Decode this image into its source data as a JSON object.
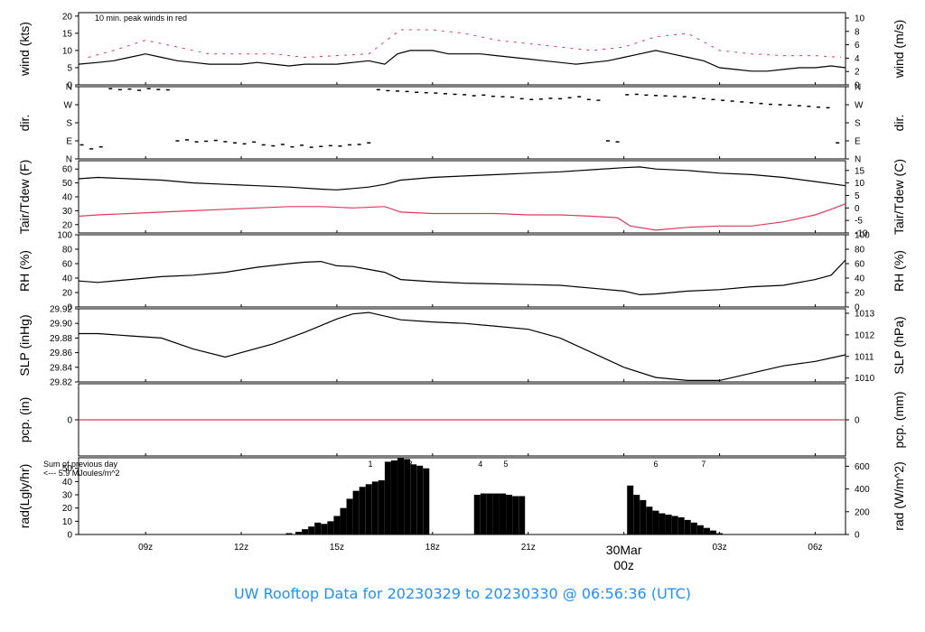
{
  "footer": {
    "title": "UW Rooftop Data for 20230329  to  20230330 @ 06:56:36  (UTC)"
  },
  "colors": {
    "black": "#000000",
    "red": "#dc3c5a",
    "purple": "#a020f0",
    "blue": "#1e90ff"
  },
  "chart_data": {
    "type": "line",
    "time_range_hours_utc": [
      6.9,
      30.95
    ],
    "x_ticks": [
      {
        "hour": 9,
        "label": "09z"
      },
      {
        "hour": 12,
        "label": "12z"
      },
      {
        "hour": 15,
        "label": "15z"
      },
      {
        "hour": 18,
        "label": "18z"
      },
      {
        "hour": 21,
        "label": "21z"
      },
      {
        "hour": 24,
        "label": "00z",
        "date_label": "30Mar"
      },
      {
        "hour": 27,
        "label": "03z"
      },
      {
        "hour": 30,
        "label": "06z"
      }
    ],
    "panels": [
      {
        "id": "wind",
        "left_label": "wind (kts)",
        "right_label": "wind (m/s)",
        "ylim": [
          0,
          21
        ],
        "left_ticks": [
          "0",
          "5",
          "10",
          "15",
          "20"
        ],
        "right_ticks": [
          "0",
          "2",
          "4",
          "6",
          "8",
          "10"
        ],
        "note": "10 min. peak winds in red",
        "series": [
          {
            "name": "wind",
            "color": "#000000",
            "x": [
              6.9,
              7.5,
              8.0,
              8.5,
              9.0,
              9.5,
              10.0,
              10.5,
              11.0,
              11.5,
              12.0,
              12.5,
              13.0,
              13.5,
              14.0,
              14.5,
              15.0,
              15.5,
              16.0,
              16.5,
              16.9,
              17.3,
              18.0,
              18.5,
              19.0,
              19.5,
              20.0,
              20.5,
              21.0,
              21.5,
              22.0,
              22.5,
              23.0,
              23.5,
              24.0,
              24.5,
              25.0,
              25.5,
              26.0,
              26.5,
              27.0,
              27.5,
              28.0,
              28.5,
              29.0,
              29.5,
              30.0,
              30.5,
              30.95
            ],
            "y": [
              6,
              6.5,
              7,
              8,
              9,
              8,
              7,
              6.5,
              6,
              6,
              6,
              6.5,
              6,
              5.5,
              6,
              6,
              6,
              6.5,
              7,
              6,
              9,
              10,
              10,
              9,
              9,
              9,
              8.5,
              8,
              7.5,
              7,
              6.5,
              6,
              6.5,
              7,
              8,
              9,
              10,
              9,
              8,
              7,
              5,
              4.5,
              4,
              4,
              4.5,
              5,
              5,
              5.5,
              5
            ]
          },
          {
            "name": "10 min. peak winds",
            "color": "#dc3c5a",
            "x": [
              7.2,
              8.0,
              9.0,
              10.0,
              11.0,
              12.0,
              13.0,
              14.0,
              15.0,
              16.0,
              17.0,
              18.0,
              19.0,
              20.0,
              21.0,
              22.0,
              23.0,
              24.0,
              25.0,
              26.0,
              27.0,
              28.0,
              29.0,
              30.0,
              30.8
            ],
            "y": [
              8,
              10,
              13,
              11,
              9,
              9,
              9,
              8,
              8.5,
              9,
              16,
              16,
              15,
              13,
              12,
              11,
              10,
              11,
              14,
              15,
              10,
              9,
              8.5,
              8.5,
              8
            ]
          }
        ]
      },
      {
        "id": "dir",
        "left_label": "dir.",
        "right_label": "dir.",
        "ylim": [
          0,
          360
        ],
        "left_ticks": [
          "N",
          "E",
          "S",
          "W",
          "N"
        ],
        "right_ticks": [
          "N",
          "E",
          "S",
          "W",
          "N"
        ],
        "series": [
          {
            "name": "direction",
            "color": "#000000",
            "style": "points",
            "x": [
              7.0,
              7.3,
              7.6,
              7.9,
              8.2,
              8.5,
              8.8,
              9.1,
              9.4,
              9.7,
              10.0,
              10.3,
              10.6,
              10.9,
              11.2,
              11.5,
              11.8,
              12.1,
              12.4,
              12.7,
              13.0,
              13.3,
              13.6,
              13.9,
              14.2,
              14.5,
              14.8,
              15.1,
              15.4,
              15.7,
              16.0,
              16.3,
              16.6,
              16.9,
              17.2,
              17.5,
              17.8,
              18.1,
              18.4,
              18.7,
              19.0,
              19.3,
              19.6,
              19.9,
              20.2,
              20.5,
              20.8,
              21.1,
              21.4,
              21.7,
              22.0,
              22.3,
              22.6,
              22.9,
              23.2,
              23.5,
              23.8,
              24.1,
              24.4,
              24.7,
              25.0,
              25.3,
              25.6,
              25.9,
              26.2,
              26.5,
              26.8,
              27.1,
              27.4,
              27.7,
              28.0,
              28.3,
              28.6,
              28.9,
              29.2,
              29.5,
              29.8,
              30.1,
              30.4,
              30.7
            ],
            "y": [
              70,
              50,
              60,
              350,
              345,
              348,
              342,
              350,
              346,
              344,
              90,
              95,
              85,
              88,
              92,
              86,
              80,
              75,
              84,
              70,
              65,
              72,
              60,
              68,
              58,
              62,
              66,
              64,
              70,
              72,
              80,
              345,
              340,
              338,
              336,
              332,
              330,
              328,
              325,
              322,
              320,
              315,
              318,
              312,
              310,
              308,
              300,
              296,
              298,
              302,
              300,
              305,
              310,
              296,
              292,
              90,
              85,
              320,
              322,
              318,
              316,
              314,
              312,
              310,
              305,
              300,
              296,
              292,
              288,
              284,
              280,
              276,
              272,
              270,
              268,
              265,
              262,
              258,
              255,
              80
            ]
          }
        ]
      },
      {
        "id": "temp",
        "left_label": "Tair/Tdew (F)",
        "right_label": "Tair/Tdew (C)",
        "ylim": [
          14,
          66
        ],
        "left_ticks": [
          "20",
          "30",
          "40",
          "50",
          "60"
        ],
        "right_ticks": [
          "-10",
          "-5",
          "0",
          "5",
          "10",
          "15"
        ],
        "series": [
          {
            "name": "Tair",
            "color": "#000000",
            "x": [
              6.9,
              7.5,
              8.5,
              9.5,
              10.5,
              11.5,
              12.5,
              13.5,
              14.5,
              15.0,
              15.5,
              16.0,
              16.5,
              17.0,
              18.0,
              19.0,
              20.0,
              21.0,
              22.0,
              23.0,
              24.0,
              24.5,
              25.0,
              26.0,
              27.0,
              28.0,
              29.0,
              30.0,
              30.95
            ],
            "y": [
              53,
              54,
              53,
              52,
              50,
              49,
              48,
              47,
              45.5,
              45,
              46,
              47,
              49,
              52,
              54,
              55,
              56,
              57,
              58,
              59.5,
              61,
              61.5,
              60,
              59,
              57,
              56,
              54,
              51,
              48
            ]
          },
          {
            "name": "Tdew",
            "color": "#dc3c5a",
            "x": [
              6.9,
              7.5,
              8.5,
              9.5,
              10.5,
              11.5,
              12.5,
              13.5,
              14.5,
              15.5,
              16.5,
              17.0,
              18.0,
              19.0,
              20.0,
              21.0,
              22.0,
              23.0,
              23.8,
              24.2,
              25.0,
              26.0,
              27.0,
              28.0,
              29.0,
              30.0,
              30.5,
              30.95
            ],
            "y": [
              26,
              27,
              28,
              29,
              30,
              31,
              32,
              33,
              33,
              32,
              33,
              29,
              28,
              28,
              28,
              27,
              27,
              26,
              25,
              19,
              16,
              18,
              19,
              19,
              22,
              27,
              31,
              35
            ]
          }
        ]
      },
      {
        "id": "rh",
        "left_label": "RH (%)",
        "right_label": "RH (%)",
        "ylim": [
          0,
          100
        ],
        "left_ticks": [
          "0",
          "20",
          "40",
          "60",
          "80",
          "100"
        ],
        "right_ticks": [
          "0",
          "20",
          "40",
          "60",
          "80",
          "100"
        ],
        "series": [
          {
            "name": "RH",
            "color": "#000000",
            "x": [
              6.9,
              7.5,
              8.5,
              9.5,
              10.5,
              11.5,
              12.5,
              13.5,
              14.0,
              14.5,
              15.0,
              15.5,
              16.0,
              16.5,
              17.0,
              18.0,
              19.0,
              20.0,
              21.0,
              22.0,
              23.0,
              24.0,
              24.5,
              25.0,
              26.0,
              27.0,
              28.0,
              29.0,
              30.0,
              30.5,
              30.95
            ],
            "y": [
              36,
              34,
              38,
              42,
              44,
              48,
              55,
              60,
              62,
              63,
              57,
              56,
              52,
              48,
              38,
              35,
              33,
              32,
              31,
              30,
              26,
              22,
              17,
              18,
              22,
              24,
              28,
              30,
              38,
              44,
              65
            ]
          }
        ]
      },
      {
        "id": "slp",
        "left_label": "SLP (inHg)",
        "right_label": "SLP (hPa)",
        "ylim": [
          29.82,
          29.92
        ],
        "left_ticks": [
          "29.82",
          "29.84",
          "29.86",
          "29.88",
          "29.90",
          "29.92"
        ],
        "right_ticks": [
          "1010",
          "1011",
          "1012",
          "1013"
        ],
        "series": [
          {
            "name": "SLP",
            "color": "#000000",
            "x": [
              6.9,
              7.5,
              8.5,
              9.5,
              10.5,
              11.5,
              12.0,
              13.0,
              14.0,
              15.0,
              15.5,
              16.0,
              16.5,
              17.0,
              18.0,
              19.0,
              20.0,
              21.0,
              22.0,
              23.0,
              24.0,
              25.0,
              26.0,
              27.0,
              28.0,
              29.0,
              30.0,
              30.95
            ],
            "y": [
              29.886,
              29.886,
              29.883,
              29.88,
              29.865,
              29.854,
              29.86,
              29.872,
              29.888,
              29.906,
              29.913,
              29.915,
              29.91,
              29.905,
              29.902,
              29.9,
              29.896,
              29.892,
              29.88,
              29.86,
              29.84,
              29.826,
              29.822,
              29.822,
              29.832,
              29.842,
              29.848,
              29.857
            ]
          }
        ]
      },
      {
        "id": "pcp",
        "left_label": "pcp. (in)",
        "right_label": "pcp. (mm)",
        "ylim": [
          -1,
          1
        ],
        "left_ticks": [
          "0"
        ],
        "right_ticks": [
          "0"
        ],
        "series": [
          {
            "name": "precip",
            "color": "#dc3c5a",
            "x": [
              6.9,
              30.95
            ],
            "y": [
              0,
              0
            ]
          }
        ]
      },
      {
        "id": "rad",
        "left_label": "rad(Lgly/hr)",
        "right_label": "rad (W/m^2)",
        "ylim": [
          0,
          58
        ],
        "left_ticks": [
          "0",
          "10",
          "20",
          "30",
          "40",
          "50"
        ],
        "right_ticks": [
          "0",
          "200",
          "400",
          "600"
        ],
        "note_lines": [
          "Sum of previous day",
          "<--- 5.9 MJoules/m^2"
        ],
        "markers": [
          {
            "hour": 16.05,
            "label": "1"
          },
          {
            "hour": 16.8,
            "label": "2"
          },
          {
            "hour": 17.3,
            "label": "3"
          },
          {
            "hour": 19.5,
            "label": "4"
          },
          {
            "hour": 20.3,
            "label": "5"
          },
          {
            "hour": 25.0,
            "label": "6"
          },
          {
            "hour": 26.5,
            "label": "7"
          }
        ],
        "series": [
          {
            "name": "radiation",
            "color": "#000000",
            "style": "bars",
            "x": [
              13.5,
              13.8,
              14.0,
              14.2,
              14.4,
              14.6,
              14.8,
              15.0,
              15.2,
              15.4,
              15.6,
              15.8,
              16.0,
              16.2,
              16.4,
              16.6,
              16.8,
              17.0,
              17.2,
              17.4,
              17.6,
              17.8,
              18.0,
              19.4,
              19.6,
              19.8,
              20.0,
              20.2,
              20.4,
              20.6,
              20.8,
              21.0,
              24.2,
              24.4,
              24.6,
              24.8,
              25.0,
              25.2,
              25.4,
              25.6,
              25.8,
              26.0,
              26.2,
              26.4,
              26.6,
              26.8,
              27.0
            ],
            "y": [
              1,
              2,
              4,
              6,
              9,
              8,
              10,
              14,
              20,
              27,
              33,
              36,
              38,
              40,
              41,
              55,
              56,
              58,
              57,
              53,
              52,
              50,
              0,
              30,
              31,
              31,
              31,
              31,
              30,
              29,
              29,
              0,
              37,
              30,
              26,
              21,
              18,
              16,
              15,
              14,
              13,
              11,
              9,
              7,
              5,
              3,
              1
            ]
          }
        ]
      }
    ]
  }
}
